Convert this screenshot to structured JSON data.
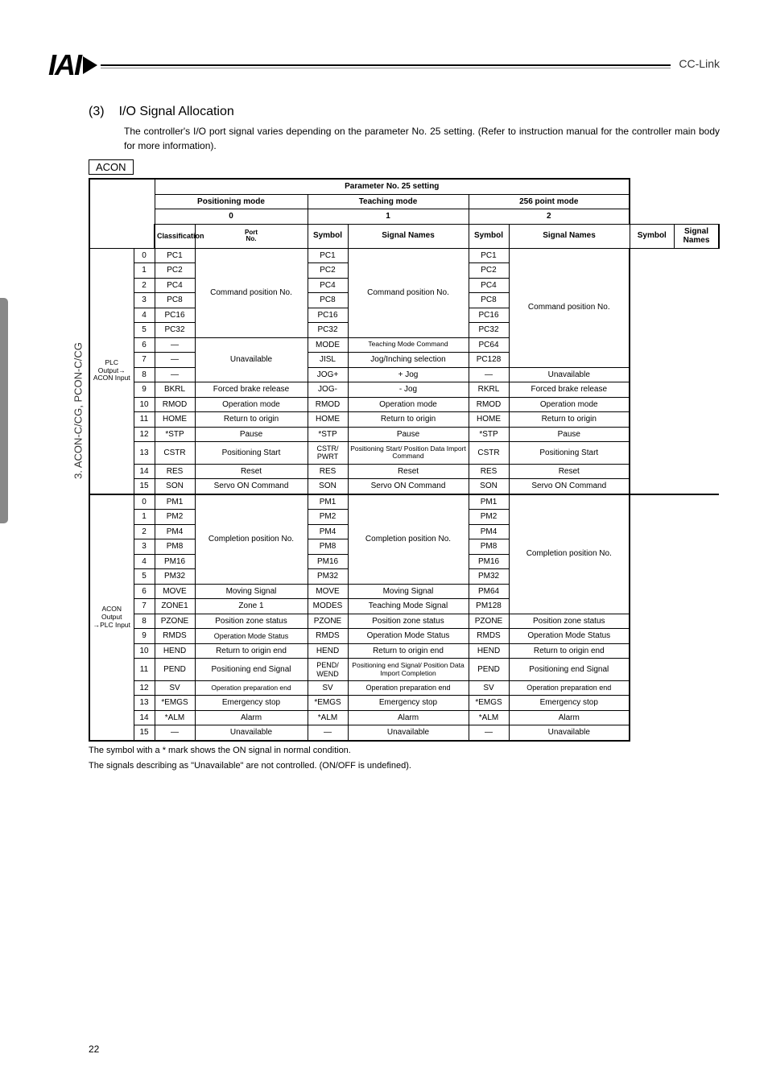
{
  "side_label": "3. ACON-C/CG, PCON-C/CG",
  "header_right": "CC-Link",
  "logo_text": "IAI",
  "section_num": "(3)",
  "section_title": "I/O Signal Allocation",
  "intro": "The controller's I/O port signal varies depending on the parameter No. 25 setting. (Refer to instruction manual for the controller main body for more information).",
  "acon_label": "ACON",
  "th_param": "Parameter No. 25 setting",
  "th_pos": "Positioning mode",
  "th_teach": "Teaching mode",
  "th_256": "256 point mode",
  "n0": "0",
  "n1": "1",
  "n2": "2",
  "th_class": "Classification",
  "th_port": "Port No.",
  "th_sym": "Symbol",
  "th_sig": "Signal Names",
  "cls_out": "PLC Output→\nACON Input",
  "cls_in": "ACON Output\n→PLC Input",
  "cmd_pos_no": "Command position No.",
  "cmd_pos": "Command position No.",
  "unavail": "Unavailable",
  "compl_pos": "Completion position No.",
  "out": [
    {
      "p": "0",
      "s1": "PC1",
      "s2": "PC1",
      "s3": "PC1"
    },
    {
      "p": "1",
      "s1": "PC2",
      "s2": "PC2",
      "s3": "PC2"
    },
    {
      "p": "2",
      "s1": "PC4",
      "s2": "PC4",
      "s3": "PC4"
    },
    {
      "p": "3",
      "s1": "PC8",
      "s2": "PC8",
      "s3": "PC8"
    },
    {
      "p": "4",
      "s1": "PC16",
      "s2": "PC16",
      "s3": "PC16"
    },
    {
      "p": "5",
      "s1": "PC32",
      "s2": "PC32",
      "s3": "PC32"
    },
    {
      "p": "6",
      "s1": "—",
      "s2": "MODE",
      "n2": "Teaching Mode Command",
      "s3": "PC64"
    },
    {
      "p": "7",
      "s1": "—",
      "s2": "JISL",
      "n2": "Jog/Inching selection",
      "s3": "PC128"
    },
    {
      "p": "8",
      "s1": "—",
      "s2": "JOG+",
      "n2": "+ Jog",
      "s3": "—",
      "n3": "Unavailable"
    },
    {
      "p": "9",
      "s1": "BKRL",
      "n1": "Forced brake release",
      "s2": "JOG-",
      "n2": "- Jog",
      "s3": "RKRL",
      "n3": "Forced brake release"
    },
    {
      "p": "10",
      "s1": "RMOD",
      "n1": "Operation mode",
      "s2": "RMOD",
      "n2": "Operation mode",
      "s3": "RMOD",
      "n3": "Operation mode"
    },
    {
      "p": "11",
      "s1": "HOME",
      "n1": "Return to origin",
      "s2": "HOME",
      "n2": "Return to origin",
      "s3": "HOME",
      "n3": "Return to origin"
    },
    {
      "p": "12",
      "s1": "*STP",
      "n1": "Pause",
      "s2": "*STP",
      "n2": "Pause",
      "s3": "*STP",
      "n3": "Pause"
    },
    {
      "p": "13",
      "s1": "CSTR",
      "n1": "Positioning Start",
      "s2": "CSTR/ PWRT",
      "n2": "Positioning Start/ Position Data Import Command",
      "s3": "CSTR",
      "n3": "Positioning Start"
    },
    {
      "p": "14",
      "s1": "RES",
      "n1": "Reset",
      "s2": "RES",
      "n2": "Reset",
      "s3": "RES",
      "n3": "Reset"
    },
    {
      "p": "15",
      "s1": "SON",
      "n1": "Servo ON Command",
      "s2": "SON",
      "n2": "Servo ON Command",
      "s3": "SON",
      "n3": "Servo ON Command"
    }
  ],
  "inp": [
    {
      "p": "0",
      "s1": "PM1",
      "s2": "PM1",
      "s3": "PM1"
    },
    {
      "p": "1",
      "s1": "PM2",
      "s2": "PM2",
      "s3": "PM2"
    },
    {
      "p": "2",
      "s1": "PM4",
      "s2": "PM4",
      "s3": "PM4"
    },
    {
      "p": "3",
      "s1": "PM8",
      "s2": "PM8",
      "s3": "PM8"
    },
    {
      "p": "4",
      "s1": "PM16",
      "s2": "PM16",
      "s3": "PM16"
    },
    {
      "p": "5",
      "s1": "PM32",
      "s2": "PM32",
      "s3": "PM32"
    },
    {
      "p": "6",
      "s1": "MOVE",
      "n1": "Moving Signal",
      "s2": "MOVE",
      "n2": "Moving Signal",
      "s3": "PM64"
    },
    {
      "p": "7",
      "s1": "ZONE1",
      "n1": "Zone 1",
      "s2": "MODES",
      "n2": "Teaching Mode Signal",
      "s3": "PM128"
    },
    {
      "p": "8",
      "s1": "PZONE",
      "n1": "Position zone status",
      "s2": "PZONE",
      "n2": "Position zone status",
      "s3": "PZONE",
      "n3": "Position zone status"
    },
    {
      "p": "9",
      "s1": "RMDS",
      "n1": "Operation Mode Status",
      "s2": "RMDS",
      "n2": "Operation Mode Status",
      "s3": "RMDS",
      "n3": "Operation Mode Status"
    },
    {
      "p": "10",
      "s1": "HEND",
      "n1": "Return to origin end",
      "s2": "HEND",
      "n2": "Return to origin end",
      "s3": "HEND",
      "n3": "Return to origin end"
    },
    {
      "p": "11",
      "s1": "PEND",
      "n1": "Positioning end Signal",
      "s2": "PEND/ WEND",
      "n2": "Positioning end Signal/ Position Data Import Completion",
      "s3": "PEND",
      "n3": "Positioning end Signal"
    },
    {
      "p": "12",
      "s1": "SV",
      "n1": "Operation preparation end",
      "s2": "SV",
      "n2": "Operation preparation end",
      "s3": "SV",
      "n3": "Operation preparation end"
    },
    {
      "p": "13",
      "s1": "*EMGS",
      "n1": "Emergency stop",
      "s2": "*EMGS",
      "n2": "Emergency stop",
      "s3": "*EMGS",
      "n3": "Emergency stop"
    },
    {
      "p": "14",
      "s1": "*ALM",
      "n1": "Alarm",
      "s2": "*ALM",
      "n2": "Alarm",
      "s3": "*ALM",
      "n3": "Alarm"
    },
    {
      "p": "15",
      "s1": "—",
      "n1": "Unavailable",
      "s2": "—",
      "n2": "Unavailable",
      "s3": "—",
      "n3": "Unavailable"
    }
  ],
  "foot1": "The symbol with a * mark shows the ON signal in normal condition.",
  "foot2": "The signals describing as \"Unavailable\" are not controlled. (ON/OFF is undefined).",
  "page_no": "22"
}
